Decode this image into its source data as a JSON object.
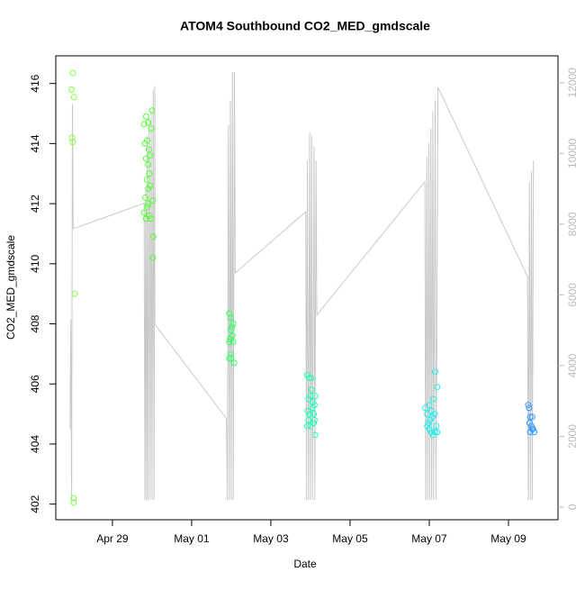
{
  "chart_data": {
    "type": "scatter",
    "title": "ATOM4 Southbound CO2_MED_gmdscale",
    "x_label": "Date",
    "y_label": "CO2_MED_gmdscale",
    "xlim": [
      27.57,
      40.25
    ],
    "ylim": [
      401.48,
      416.92
    ],
    "y2lim": [
      -360,
      12760
    ],
    "xticks": [
      {
        "value": 29,
        "label": "Apr 29"
      },
      {
        "value": 31,
        "label": "May 01"
      },
      {
        "value": 33,
        "label": "May 03"
      },
      {
        "value": 35,
        "label": "May 05"
      },
      {
        "value": 37,
        "label": "May 07"
      },
      {
        "value": 39,
        "label": "May 09"
      }
    ],
    "yticks": [
      402,
      404,
      406,
      408,
      410,
      412,
      414,
      416
    ],
    "y2ticks": [
      0,
      2000,
      4000,
      6000,
      8000,
      10000,
      12000
    ],
    "groups": [
      {
        "color": "#80ff40",
        "x": [
          28.0,
          27.97,
          28.03,
          27.98,
          28.0,
          28.05,
          28.02,
          28.02
        ],
        "values": [
          416.35,
          415.8,
          415.55,
          414.2,
          414.05,
          409.0,
          402.2,
          402.05
        ]
      },
      {
        "color": "#55ff33",
        "x": [
          29.8,
          29.85,
          29.9,
          30.0,
          29.98,
          29.82,
          29.88,
          29.92,
          29.95,
          29.85,
          29.9,
          29.93,
          29.87,
          29.9,
          29.83,
          29.95,
          30.02,
          29.88,
          29.8,
          29.85,
          29.92,
          29.97,
          30.03,
          30.02,
          29.9
        ],
        "values": [
          414.65,
          414.9,
          414.7,
          415.1,
          414.5,
          414.0,
          414.1,
          413.8,
          413.6,
          413.5,
          413.3,
          413.0,
          412.8,
          412.5,
          412.2,
          412.6,
          412.1,
          411.9,
          411.7,
          411.5,
          411.6,
          411.5,
          410.9,
          410.2,
          412.0
        ]
      },
      {
        "color": "#33ff66",
        "x": [
          31.95,
          31.98,
          32.05,
          32.0,
          31.97,
          32.03,
          31.95,
          32.05,
          31.98,
          32.0,
          31.95,
          32.07,
          32.02
        ],
        "values": [
          408.35,
          408.2,
          408.0,
          407.8,
          407.5,
          407.6,
          407.4,
          407.4,
          407.0,
          406.85,
          406.85,
          406.7,
          407.9
        ]
      },
      {
        "color": "#22ffbb",
        "x": [
          33.92,
          33.97,
          34.02,
          33.95,
          34.0,
          34.05,
          34.12,
          34.1,
          33.93,
          33.98,
          34.05,
          34.08,
          33.95,
          34.1,
          33.92,
          34.0,
          34.08,
          34.12,
          34.03
        ],
        "values": [
          406.3,
          406.2,
          406.2,
          405.5,
          405.6,
          405.4,
          405.6,
          405.3,
          405.1,
          405.0,
          405.2,
          405.0,
          404.8,
          404.8,
          404.6,
          404.6,
          404.7,
          404.3,
          405.8
        ]
      },
      {
        "color": "#22eeee",
        "x": [
          36.9,
          36.95,
          37.0,
          37.05,
          37.1,
          37.2,
          37.15,
          36.95,
          37.0,
          37.05,
          37.1,
          37.15,
          37.18,
          37.02,
          37.08,
          37.13,
          36.98,
          37.2
        ],
        "values": [
          405.2,
          405.0,
          405.3,
          405.1,
          405.5,
          405.9,
          406.4,
          404.6,
          404.5,
          404.4,
          404.3,
          404.4,
          404.6,
          404.8,
          404.9,
          405.0,
          404.7,
          404.4
        ]
      },
      {
        "color": "#3399ff",
        "x": [
          39.5,
          39.52,
          39.55,
          39.6,
          39.53,
          39.58,
          39.62,
          39.65,
          39.55,
          39.6
        ],
        "values": [
          405.3,
          405.2,
          404.9,
          404.9,
          404.7,
          404.6,
          404.5,
          404.4,
          404.4,
          404.5
        ]
      }
    ],
    "line": {
      "color": "#c8c8c8",
      "axis": "y2",
      "x": [
        27.93,
        27.95,
        27.97,
        27.99,
        28.01,
        29.8,
        29.82,
        29.84,
        29.86,
        29.88,
        29.9,
        29.93,
        29.95,
        29.98,
        30.0,
        30.03,
        30.05,
        30.07,
        30.07,
        31.88,
        31.9,
        31.93,
        31.95,
        31.98,
        32.0,
        32.03,
        32.05,
        32.08,
        32.1,
        33.88,
        33.9,
        33.92,
        33.95,
        33.98,
        34.0,
        34.03,
        34.05,
        34.09,
        34.11,
        34.14,
        34.16,
        36.89,
        36.91,
        36.94,
        36.96,
        36.99,
        37.01,
        37.04,
        37.06,
        37.09,
        37.11,
        37.15,
        37.17,
        37.22,
        39.48,
        39.5,
        39.53,
        39.55,
        39.58,
        39.6,
        39.63
      ],
      "values": [
        2200,
        5300,
        200,
        11400,
        7870,
        8590,
        200,
        9000,
        200,
        10500,
        200,
        11000,
        200,
        11200,
        200,
        11800,
        200,
        11900,
        5170,
        2500,
        200,
        10800,
        200,
        11500,
        200,
        12300,
        200,
        12300,
        6620,
        8350,
        200,
        9800,
        200,
        10600,
        200,
        10500,
        200,
        10200,
        200,
        9800,
        5430,
        9200,
        200,
        9900,
        200,
        10300,
        200,
        10700,
        200,
        11200,
        200,
        11500,
        200,
        11870,
        6520,
        200,
        9200,
        200,
        9500,
        200,
        9800
      ]
    }
  }
}
